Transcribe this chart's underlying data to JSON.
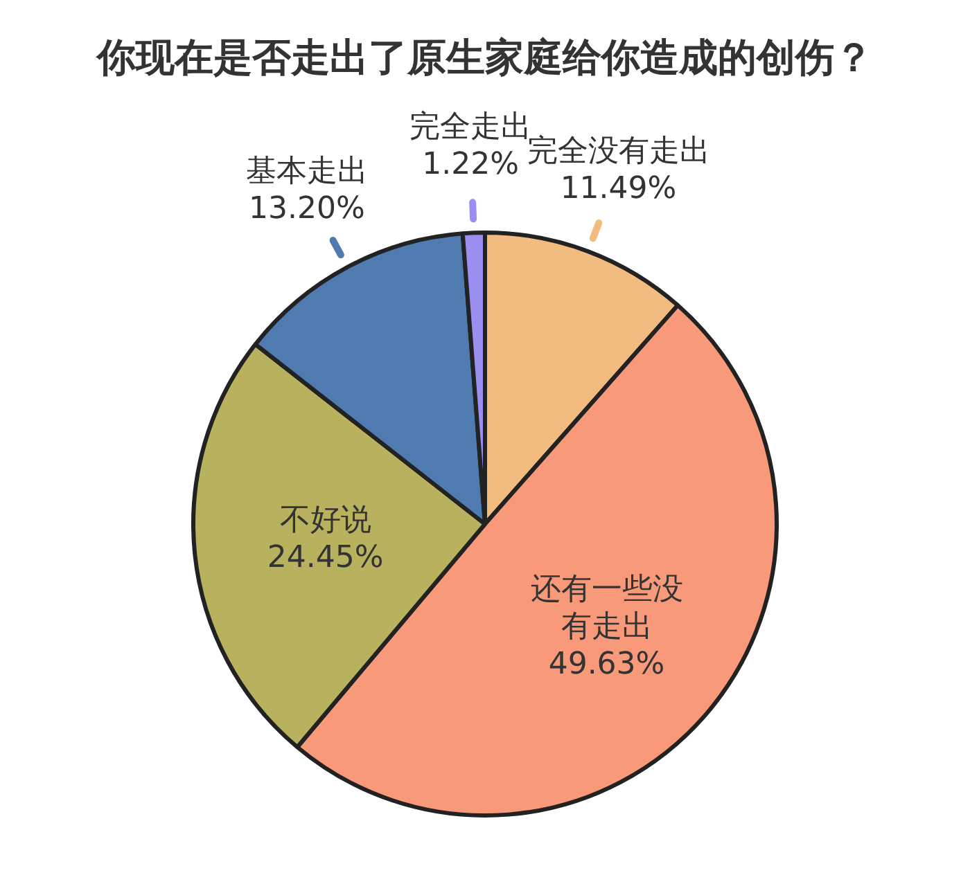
{
  "chart_data": {
    "type": "pie",
    "title": "你现在是否走出了原生家庭给你造成的创伤？",
    "categories": [
      "完全没有走出",
      "还有一些没有走出",
      "不好说",
      "基本走出",
      "完全走出"
    ],
    "values": [
      11.49,
      49.63,
      24.45,
      13.2,
      1.22
    ],
    "value_labels": [
      "11.49%",
      "49.63%",
      "24.45%",
      "13.20%",
      "1.22%"
    ],
    "colors": [
      "#f2bb7f",
      "#f89a7a",
      "#b8b25e",
      "#4f7bb0",
      "#9a8ff0"
    ],
    "legend": false
  }
}
